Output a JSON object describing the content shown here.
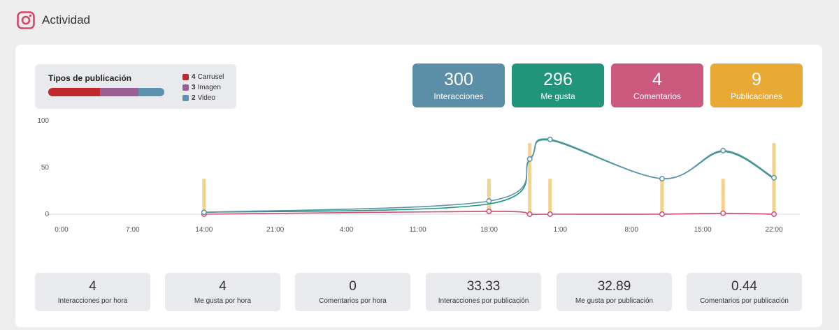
{
  "header": {
    "title": "Actividad",
    "icon": "instagram-icon"
  },
  "post_types": {
    "title": "Tipos de publicación",
    "items": [
      {
        "count": "4",
        "label": "Carrusel",
        "value": 4,
        "color": "#c0282d"
      },
      {
        "count": "3",
        "label": "Imagen",
        "value": 3,
        "color": "#9b5f96"
      },
      {
        "count": "2",
        "label": "Video",
        "value": 2,
        "color": "#5b93ae"
      }
    ]
  },
  "stats": [
    {
      "value": "300",
      "label": "Interacciones",
      "color": "#5b8fa8"
    },
    {
      "value": "296",
      "label": "Me gusta",
      "color": "#21957a"
    },
    {
      "value": "4",
      "label": "Comentarios",
      "color": "#cc5a7e"
    },
    {
      "value": "9",
      "label": "Publicaciones",
      "color": "#e8a935"
    }
  ],
  "chart_data": {
    "type": "line",
    "x_ticks": [
      "0:00",
      "7:00",
      "14:00",
      "21:00",
      "4:00",
      "11:00",
      "18:00",
      "1:00",
      "8:00",
      "15:00",
      "22:00"
    ],
    "y_ticks": [
      "100",
      "50",
      "0"
    ],
    "ylim": [
      0,
      100
    ],
    "x_unit": "hours from 0:00 (first day)",
    "xlim": [
      0,
      70
    ],
    "series": [
      {
        "name": "Interacciones",
        "color": "#5b93ae",
        "x": [
          14,
          42,
          46,
          48,
          59,
          65,
          70
        ],
        "y": [
          2,
          14,
          59,
          80,
          38,
          68,
          39
        ]
      },
      {
        "name": "Me gusta",
        "color": "#21957a",
        "x": [
          14,
          42,
          46,
          48,
          59,
          65,
          70
        ],
        "y": [
          2,
          11,
          58,
          79,
          38,
          67,
          38
        ]
      },
      {
        "name": "Comentarios",
        "color": "#d04c6e",
        "x": [
          14,
          42,
          46,
          48,
          59,
          65,
          70
        ],
        "y": [
          0,
          3,
          0,
          0,
          0,
          1,
          0
        ]
      }
    ],
    "post_markers": {
      "name": "Publicaciones",
      "color": "#f4d28a",
      "items": [
        {
          "x": 14,
          "height": 38
        },
        {
          "x": 42,
          "height": 38
        },
        {
          "x": 46,
          "height": 76
        },
        {
          "x": 48,
          "height": 38
        },
        {
          "x": 59,
          "height": 38
        },
        {
          "x": 65,
          "height": 38
        },
        {
          "x": 70,
          "height": 76
        }
      ]
    }
  },
  "metrics": [
    {
      "value": "4",
      "label": "Interacciones por hora"
    },
    {
      "value": "4",
      "label": "Me gusta por hora"
    },
    {
      "value": "0",
      "label": "Comentarios por hora"
    },
    {
      "value": "33.33",
      "label": "Interacciones por publicación"
    },
    {
      "value": "32.89",
      "label": "Me gusta por publicación"
    },
    {
      "value": "0.44",
      "label": "Comentarios por publicación"
    }
  ]
}
